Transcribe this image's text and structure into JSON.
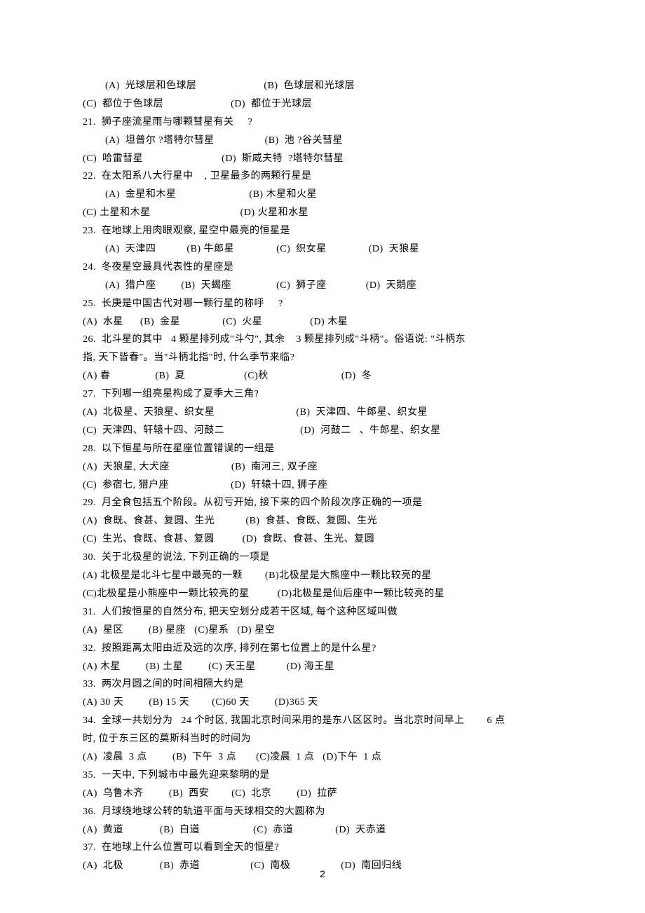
{
  "page_number": "2",
  "background_color": "#ffffff",
  "text_color": "#000000",
  "font_family": "SimSun",
  "font_size_pt": 11,
  "lines": [
    "        (A)  光球层和色球层                        (B)  色球层和光球层",
    "(C)  都位于色球层                        (D)  都位于光球层",
    "21.  狮子座流星雨与哪颗彗星有关     ?",
    "        (A)  坦普尔 ?塔特尔彗星                  (B)  池 ?谷关彗星",
    "(C)  哈雷彗星                            (D)  斯威夫特  ?塔特尔彗星",
    "22.  在太阳系八大行星中    , 卫星最多的两颗行星是",
    "        (A)  金星和木星                          (B) 木星和火星",
    "(C) 土星和木星                                (D) 火星和水星",
    "23.  在地球上用肉眼观察, 星空中最亮的恒星是",
    "        (A)  天津四           (B) 牛郎星               (C)  织女星               (D)  天狼星",
    "24.  冬夜星空最具代表性的星座是",
    "        (A)  猎户座         (B)  天蝎座                (C)  狮子座              (D)  天鹅座",
    "25.  长庚是中国古代对哪一颗行星的称呼     ?",
    "(A)  水星      (B)  金星               (C)  火星                 (D) 木星",
    "26.  北斗星的其中   4 颗星排列成\"斗勺\", 其余    3 颗星排列成\"斗柄\"。俗语说: \"斗柄东",
    "指, 天下皆春\"。当\"斗柄北指\"时, 什么季节来临?",
    "(A) 春                (B)  夏                     (C)秋                          (D)  冬",
    "27.  下列哪一组亮星构成了夏季大三角?",
    "(A)  北极星、天狼星、织女星                             (B)  天津四、牛郎星、织女星",
    "(C)  天津四、轩辕十四、河鼓二                           (D)  河鼓二   、牛郎星、织女星",
    "28.  以下恒星与所在星座位置错误的一组是",
    "(A)  天狼星, 大犬座                      (B)  南河三, 双子座",
    "(C)  参宿七, 猎户座                      (D)  轩辕十四, 狮子座",
    "29.  月全食包括五个阶段。从初亏开始, 接下来的四个阶段次序正确的一项是",
    "(A)  食既、食甚、复圆、生光           (B)  食甚、食既、复圆、生光",
    "(C)  生光、食既、食甚、复圆          (D)  食既、食甚、生光、复圆",
    "30.  关于北极星的说法, 下列正确的一项是",
    "(A) 北极星是北斗七星中最亮的一颗        (B)北极星是大熊座中一颗比较亮的星",
    "(C)北极星是小熊座中一颗比较亮的星          (D)北极星是仙后座中一颗比较亮的星",
    "31.  人们按恒星的自然分布, 把天空划分成若干区域, 每个这种区域叫做",
    "(A)  星区         (B) 星座   (C)星系   (D) 星空",
    "32.  按照距离太阳由近及远的次序, 排列在第七位置上的是什么星?",
    "(A) 木星         (B) 土星         (C) 天王星           (D) 海王星",
    "33.  两次月圆之间的时间相隔大约是",
    "(A) 30 天         (B) 15 天        (C)60 天         (D)365 天",
    "34.  全球一共划分为   24 个时区, 我国北京时间采用的是东八区区时。当北京时间早上        6 点",
    "时, 位于东三区的莫斯科当时的时间为",
    "(A)  凌晨  3 点         (B)  下午  3 点       (C)凌晨  1 点   (D)下午  1 点",
    "35.  一天中, 下列城市中最先迎来黎明的是",
    "(A)  乌鲁木齐         (B)  西安        (C)  北京         (D)  拉萨",
    "36.  月球绕地球公转的轨道平面与天球相交的大圆称为",
    "(A)  黄道             (B)  白道                   (C)  赤道               (D)  天赤道",
    "37.  在地球上什么位置可以看到全天的恒星?",
    "(A)  北极             (B)  赤道                  (C)  南极                  (D)  南回归线"
  ]
}
